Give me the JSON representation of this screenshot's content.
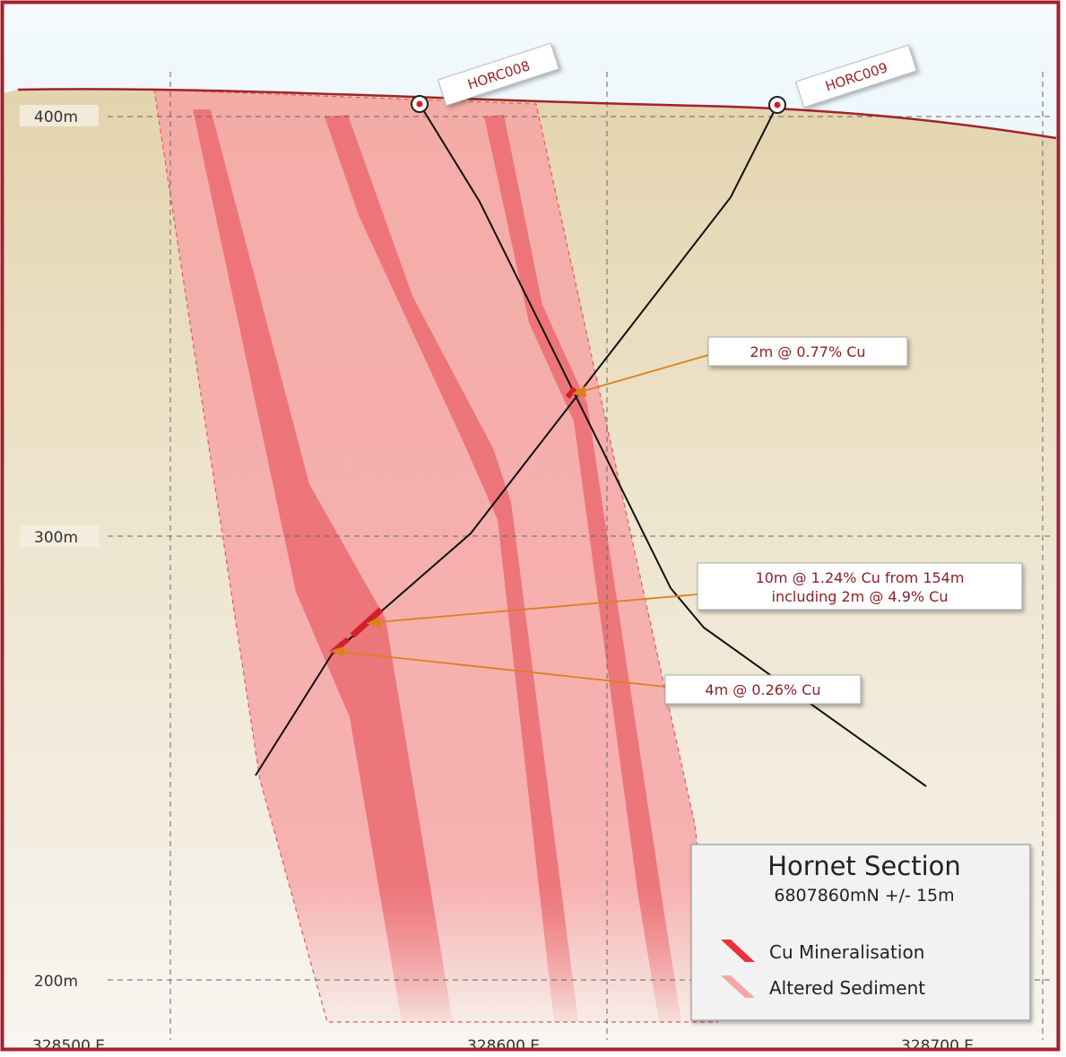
{
  "legend": {
    "title": "Hornet Section",
    "subtitle": "6807860mN +/- 15m",
    "items": [
      {
        "label": "Cu Mineralisation",
        "color": "#e8323c"
      },
      {
        "label": "Altered Sediment",
        "color": "#f7a6a8"
      }
    ]
  },
  "elevation_labels": [
    "400m",
    "300m",
    "200m"
  ],
  "easting_labels": [
    "328500 E",
    "328600 E",
    "328700 E"
  ],
  "drillholes": [
    {
      "name": "HORC008"
    },
    {
      "name": "HORC009"
    }
  ],
  "callouts": [
    {
      "lines": [
        "2m @ 0.77% Cu"
      ]
    },
    {
      "lines": [
        "10m @ 1.24% Cu from 154m",
        "including 2m @ 4.9% Cu"
      ]
    },
    {
      "lines": [
        "4m @ 0.26% Cu"
      ]
    }
  ],
  "colors": {
    "frame": "#a3222b",
    "sky": "#cde7f3",
    "ground": "#e8dcbc",
    "altered_sediment": "#f7a6a8",
    "cu_mineralisation": "#e8323c",
    "arrow": "#d9821c",
    "trace": "#111111"
  }
}
